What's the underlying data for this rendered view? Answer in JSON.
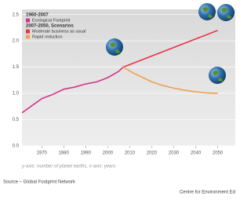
{
  "chart_data": {
    "type": "line",
    "legend_groups": [
      "1960-2007",
      "2007-2050, Scenarios"
    ],
    "axis_note": "y-axis: number of planet earths, x-axis: years",
    "source": "Source – Global Footprint Network",
    "credit": "Centre for Environment Ed",
    "xlim": [
      1961,
      2058
    ],
    "xticks": [
      1970,
      1980,
      1990,
      2000,
      2010,
      2020,
      2030,
      2040,
      2050
    ],
    "ylim": [
      0,
      2.6
    ],
    "yticks": [
      {
        "value": 0,
        "label": "0.0"
      },
      0.5,
      {
        "value": 1,
        "label": "1.0"
      },
      1.5,
      {
        "value": 2,
        "label": "2.0"
      },
      2.5
    ],
    "grid": true,
    "series": [
      {
        "name": "Ecological Footprint",
        "color": "#d6338a",
        "x": [
          1961,
          1965,
          1970,
          1975,
          1980,
          1985,
          1990,
          1995,
          2000,
          2005,
          2007
        ],
        "values": [
          0.63,
          0.75,
          0.9,
          0.98,
          1.08,
          1.12,
          1.18,
          1.22,
          1.3,
          1.42,
          1.5
        ]
      },
      {
        "name": "Moderate business as usual",
        "color": "#e8334a",
        "x": [
          2007,
          2050
        ],
        "values": [
          1.5,
          2.2
        ]
      },
      {
        "name": "Rapid reduction",
        "color": "#f0a050",
        "x": [
          2007,
          2012,
          2016,
          2020,
          2025,
          2030,
          2035,
          2040,
          2045,
          2050
        ],
        "values": [
          1.5,
          1.38,
          1.3,
          1.22,
          1.15,
          1.1,
          1.06,
          1.03,
          1.01,
          1.0
        ]
      }
    ]
  }
}
